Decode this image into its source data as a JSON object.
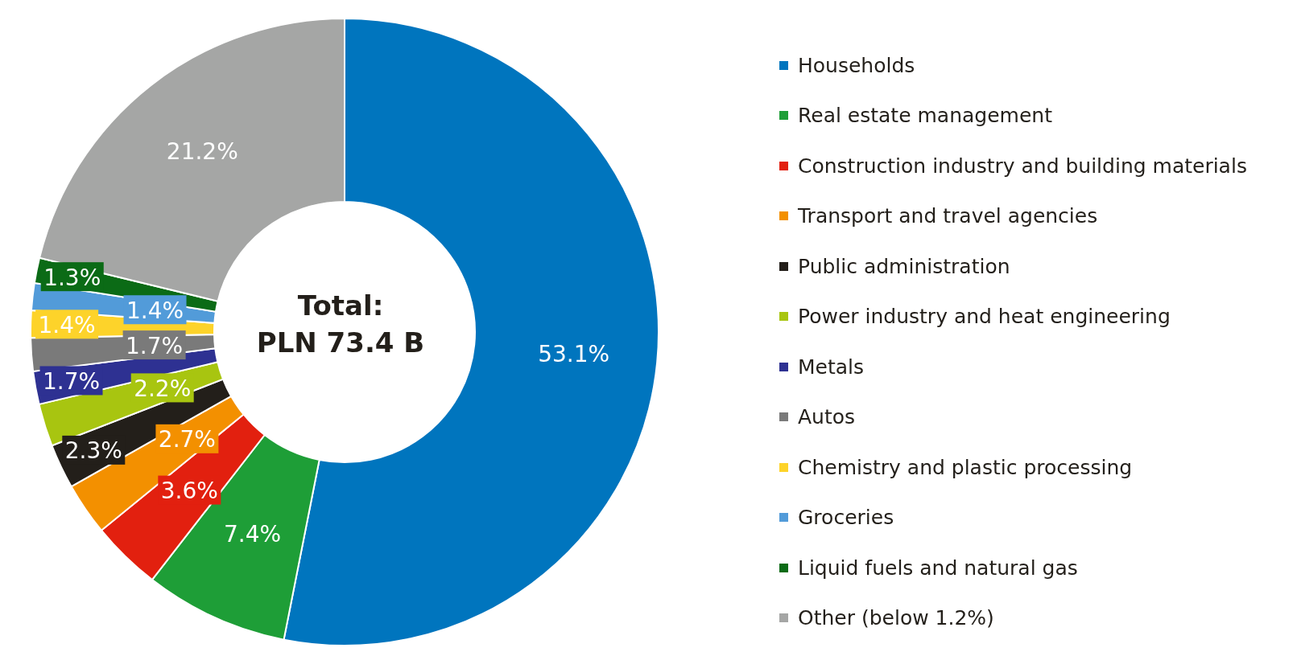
{
  "chart_data": {
    "type": "donut",
    "categories": [
      "Households",
      "Real estate management",
      "Construction industry and building materials",
      "Transport and travel agencies",
      "Public administration",
      "Power industry and heat engineering",
      "Metals",
      "Autos",
      "Chemistry and plastic processing",
      "Groceries",
      "Liquid fuels and natural gas",
      "Other (below 1.2%)"
    ],
    "values": [
      53.1,
      7.4,
      3.6,
      2.7,
      2.3,
      2.2,
      1.7,
      1.7,
      1.4,
      1.4,
      1.3,
      21.2
    ],
    "colors": [
      "#0075be",
      "#1e9e37",
      "#e2200f",
      "#f39000",
      "#231f1a",
      "#a8c510",
      "#2e3192",
      "#7a7a7a",
      "#fdd32a",
      "#529bd9",
      "#0b6b16",
      "#a5a6a5"
    ],
    "value_labels": [
      "53.1%",
      "7.4%",
      "3.6%",
      "2.7%",
      "2.3%",
      "2.2%",
      "1.7%",
      "1.7%",
      "1.4%",
      "1.4%",
      "1.3%",
      "21.2%"
    ],
    "legend": "right",
    "annotations": [
      "Total:",
      "PLN 73.4 B"
    ]
  }
}
